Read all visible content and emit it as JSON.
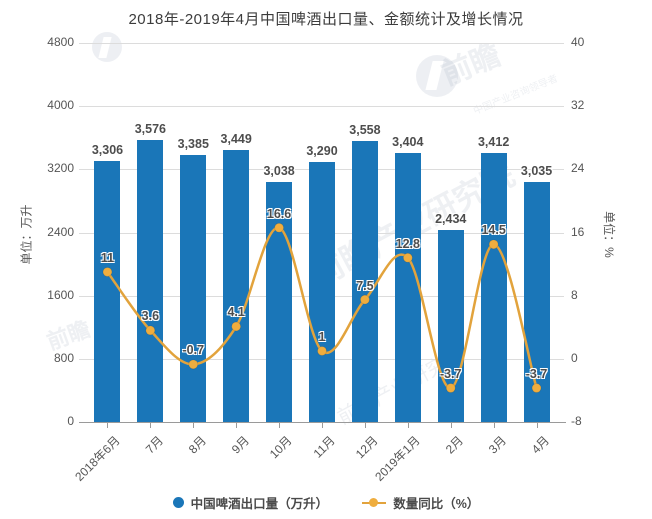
{
  "title": "2018年-2019年4月中国啤酒出口量、金额统计及增长情况",
  "chart_data": {
    "type": "bar",
    "categories": [
      "2018年6月",
      "7月",
      "8月",
      "9月",
      "10月",
      "11月",
      "12月",
      "2019年1月",
      "2月",
      "3月",
      "4月"
    ],
    "series": [
      {
        "name": "中国啤酒出口量（万升）",
        "type": "bar",
        "values": [
          3306,
          3576,
          3385,
          3449,
          3038,
          3290,
          3558,
          3404,
          2434,
          3412,
          3035
        ],
        "labels": [
          "3,306",
          "3,576",
          "3,385",
          "3,449",
          "3,038",
          "3,290",
          "3,558",
          "3,404",
          "2,434",
          "3,412",
          "3,035"
        ]
      },
      {
        "name": "数量同比（%）",
        "type": "line",
        "values": [
          11,
          3.6,
          -0.7,
          4.1,
          16.6,
          1,
          7.5,
          12.8,
          -3.7,
          14.5,
          -3.7
        ],
        "labels": [
          "11",
          "3.6",
          "-0.7",
          "4.1",
          "16.6",
          "1",
          "7.5",
          "12.8",
          "-3.7",
          "14.5",
          "-3.7"
        ]
      }
    ],
    "y_left": {
      "name": "单位：万升",
      "min": 0,
      "max": 4800,
      "ticks": [
        "0",
        "800",
        "1600",
        "2400",
        "3200",
        "4000",
        "4800"
      ]
    },
    "y_right": {
      "name": "单位：%",
      "min": -8,
      "max": 40,
      "ticks": [
        "-8",
        "0",
        "8",
        "16",
        "24",
        "32",
        "40"
      ]
    },
    "grid": true,
    "legend_position": "bottom"
  },
  "legend": {
    "items": [
      {
        "label": "中国啤酒出口量（万升）"
      },
      {
        "label": "数量同比（%）"
      }
    ]
  },
  "colors": {
    "bar": "#1a76b8",
    "line": "#e2a33c",
    "marker": "#efad3e",
    "data_label": "#4d4d4d",
    "grid": "#dcdcdc",
    "axis_line": "#9a9a9a",
    "axis_text": "#555555",
    "title_text": "#3c3c3c"
  },
  "watermarks": {
    "brand_large": "前瞻产业研究院",
    "brand_short": "前瞻",
    "brand_sub": "中国产业咨询领导者",
    "corner": "前瞻"
  }
}
